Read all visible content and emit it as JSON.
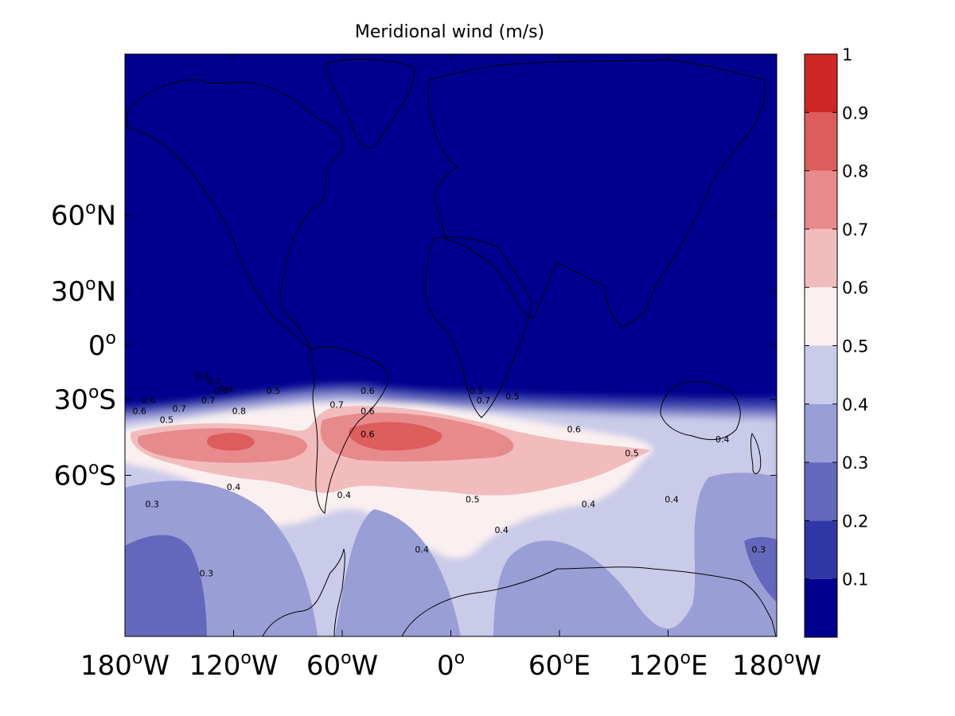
{
  "chart_data": {
    "type": "heatmap",
    "title": "Meridional wind (m/s)",
    "xlabel": "",
    "ylabel": "",
    "x_ticks": [
      {
        "value": -180,
        "deg": "180",
        "hemi": "W"
      },
      {
        "value": -120,
        "deg": "120",
        "hemi": "W"
      },
      {
        "value": -60,
        "deg": "60",
        "hemi": "W"
      },
      {
        "value": 0,
        "deg": "0",
        "hemi": ""
      },
      {
        "value": 60,
        "deg": "60",
        "hemi": "E"
      },
      {
        "value": 120,
        "deg": "120",
        "hemi": "E"
      },
      {
        "value": 180,
        "deg": "180",
        "hemi": "W"
      }
    ],
    "y_ticks": [
      {
        "value": 60,
        "deg": "60",
        "hemi": "N"
      },
      {
        "value": 30,
        "deg": "30",
        "hemi": "N"
      },
      {
        "value": 0,
        "deg": "0",
        "hemi": ""
      },
      {
        "value": -30,
        "deg": "30",
        "hemi": "S"
      },
      {
        "value": -60,
        "deg": "60",
        "hemi": "S"
      }
    ],
    "xlim": [
      -180,
      180
    ],
    "ylim": [
      -84,
      84
    ],
    "colorbar": {
      "levels": [
        0,
        0.1,
        0.2,
        0.3,
        0.4,
        0.5,
        0.6,
        0.7,
        0.8,
        0.9,
        1.0
      ],
      "tick_labels": [
        "0.1",
        "0.2",
        "0.3",
        "0.4",
        "0.5",
        "0.6",
        "0.7",
        "0.8",
        "0.9",
        "1"
      ],
      "colors": [
        "#00008e",
        "#2f36a6",
        "#6468bc",
        "#9a9ed6",
        "#cacbe9",
        "#fbf0f0",
        "#f2bcbd",
        "#e78a8b",
        "#dd5c5c",
        "#d02525"
      ]
    },
    "field": [
      {
        "lon": -175,
        "lat": -35,
        "value": 0.55
      },
      {
        "lon": -120,
        "lat": -35,
        "value": 0.83
      },
      {
        "lon": -95,
        "lat": -33,
        "value": 0.68
      },
      {
        "lon": -70,
        "lat": -28,
        "value": 0.6
      },
      {
        "lon": -30,
        "lat": -35,
        "value": 0.86
      },
      {
        "lon": 10,
        "lat": -36,
        "value": 0.72
      },
      {
        "lon": 40,
        "lat": -37,
        "value": 0.62
      },
      {
        "lon": 90,
        "lat": -38,
        "value": 0.55
      },
      {
        "lon": 160,
        "lat": -38,
        "value": 0.45
      },
      {
        "lon": -150,
        "lat": -62,
        "value": 0.3
      },
      {
        "lon": -60,
        "lat": -62,
        "value": 0.3
      },
      {
        "lon": 50,
        "lat": -65,
        "value": 0.33
      },
      {
        "lon": 100,
        "lat": -68,
        "value": 0.45
      },
      {
        "lon": 165,
        "lat": -65,
        "value": 0.3
      }
    ],
    "contour_labels": [
      {
        "lon": -167,
        "lat": -32,
        "text": "0.6"
      },
      {
        "lon": -172,
        "lat": -37,
        "text": "0.6"
      },
      {
        "lon": -150,
        "lat": -36,
        "text": "0.7"
      },
      {
        "lon": -134,
        "lat": -32,
        "text": "0.7"
      },
      {
        "lon": -117,
        "lat": -37,
        "text": "0.8"
      },
      {
        "lon": -157,
        "lat": -41,
        "text": "0.5"
      },
      {
        "lon": -137,
        "lat": -19,
        "text": "0.1"
      },
      {
        "lon": -131,
        "lat": -22,
        "text": "0.2"
      },
      {
        "lon": -124,
        "lat": -26,
        "text": "0.4"
      },
      {
        "lon": -127,
        "lat": -27,
        "text": "0.3"
      },
      {
        "lon": -98,
        "lat": -27,
        "text": "0.5"
      },
      {
        "lon": -46,
        "lat": -27,
        "text": "0.6"
      },
      {
        "lon": -63,
        "lat": -34,
        "text": "0.7"
      },
      {
        "lon": -46,
        "lat": -37,
        "text": "0.6"
      },
      {
        "lon": -46,
        "lat": -47,
        "text": "0.6"
      },
      {
        "lon": 14,
        "lat": -27,
        "text": "0.5"
      },
      {
        "lon": 18,
        "lat": -32,
        "text": "0.7"
      },
      {
        "lon": 34,
        "lat": -30,
        "text": "0.5"
      },
      {
        "lon": 68,
        "lat": -45,
        "text": "0.6"
      },
      {
        "lon": 100,
        "lat": -54,
        "text": "0.5"
      },
      {
        "lon": 150,
        "lat": -49,
        "text": "0.4"
      },
      {
        "lon": -120,
        "lat": -64,
        "text": "0.4"
      },
      {
        "lon": -165,
        "lat": -68,
        "text": "0.3"
      },
      {
        "lon": -59,
        "lat": -66,
        "text": "0.4"
      },
      {
        "lon": 12,
        "lat": -67,
        "text": "0.5"
      },
      {
        "lon": -135,
        "lat": -79,
        "text": "0.3"
      },
      {
        "lon": -16,
        "lat": -76,
        "text": "0.4"
      },
      {
        "lon": 28,
        "lat": -73,
        "text": "0.4"
      },
      {
        "lon": 76,
        "lat": -68,
        "text": "0.4"
      },
      {
        "lon": 122,
        "lat": -67,
        "text": "0.4"
      },
      {
        "lon": 170,
        "lat": -76,
        "text": "0.3"
      }
    ]
  }
}
